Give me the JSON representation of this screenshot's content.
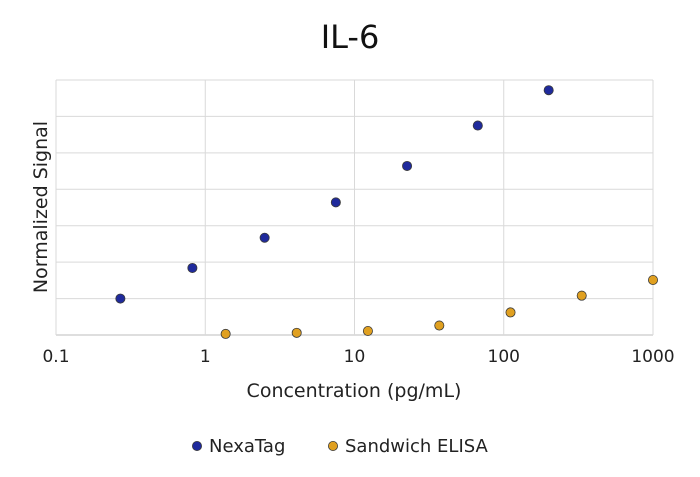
{
  "chart_data": {
    "type": "scatter",
    "title": "IL-6",
    "xlabel": "Concentration (pg/mL)",
    "ylabel": "Normalized Signal",
    "x_scale": "log",
    "xlim": [
      0.1,
      1000
    ],
    "ylim": [
      0,
      7
    ],
    "x_tick_labels": [
      "0.1",
      "1",
      "10",
      "100",
      "1000"
    ],
    "y_tick_labels": [],
    "grid": true,
    "legend_position": "bottom",
    "series": [
      {
        "name": "NexaTag",
        "color": "#1f2a9c",
        "x": [
          0.27,
          0.82,
          2.5,
          7.5,
          22.5,
          67,
          200
        ],
        "y": [
          1.0,
          1.84,
          2.67,
          3.64,
          4.64,
          5.75,
          6.72
        ]
      },
      {
        "name": "Sandwich ELISA",
        "color": "#e0a020",
        "x": [
          1.37,
          4.1,
          12.3,
          37,
          111,
          333,
          1000
        ],
        "y": [
          0.03,
          0.06,
          0.11,
          0.26,
          0.62,
          1.08,
          1.51
        ]
      }
    ]
  }
}
